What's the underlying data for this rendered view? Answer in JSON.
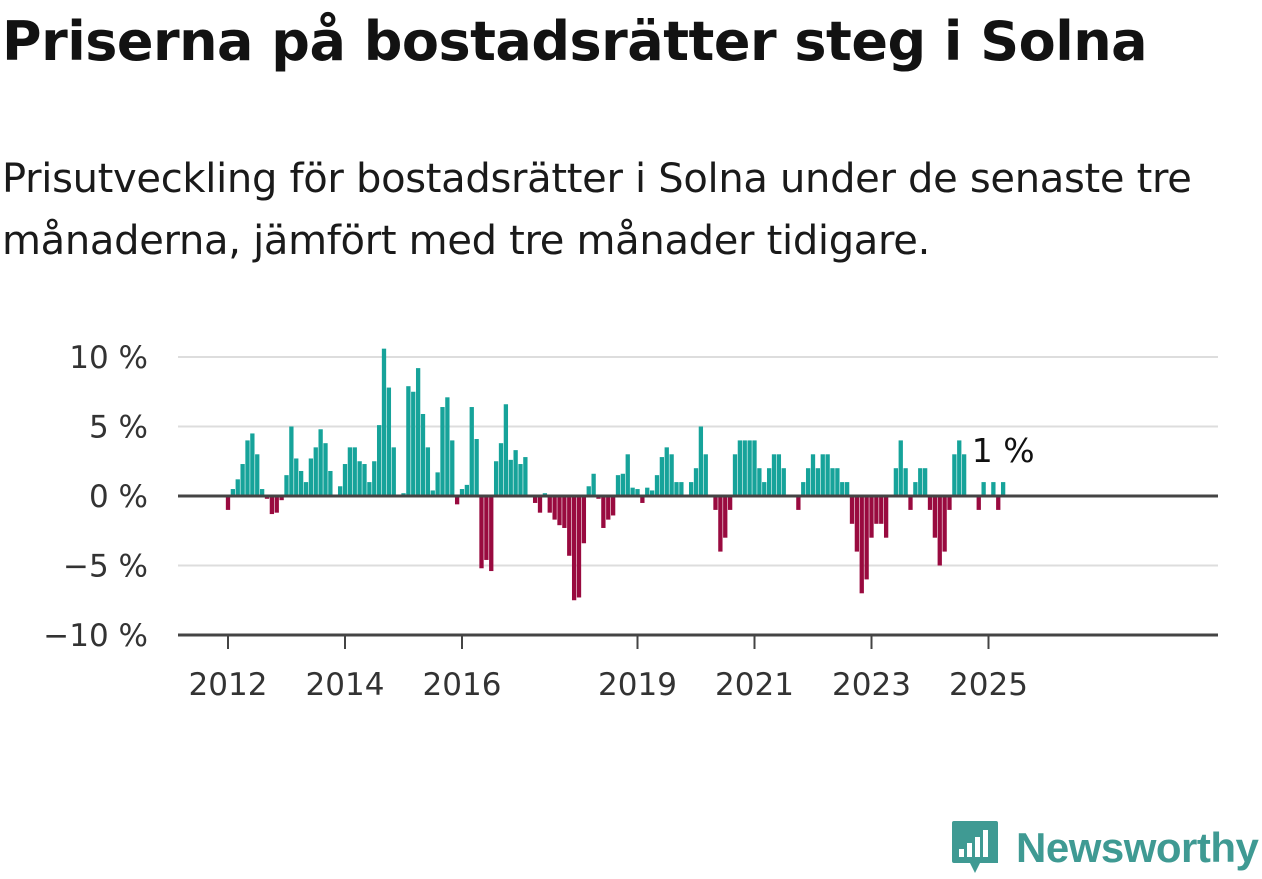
{
  "title": "Priserna på bostadsrätter steg i Solna",
  "subtitle": "Prisutveckling för bostadsrätter i Solna under de senaste tre månaderna, jämfört med tre månader tidigare.",
  "brand": {
    "name": "Newsworthy",
    "icon": "newsworthy-logo-icon"
  },
  "colors": {
    "positive": "#16a39a",
    "negative": "#990a3f",
    "grid": "#dddddd",
    "axis": "#444444"
  },
  "chart_data": {
    "type": "bar",
    "ylabel": "",
    "xlabel": "",
    "ylim": [
      -10,
      10
    ],
    "yticks": [
      {
        "value": 10,
        "label": "10 %"
      },
      {
        "value": 5,
        "label": "5 %"
      },
      {
        "value": 0,
        "label": "0 %"
      },
      {
        "value": -5,
        "label": "−5 %"
      },
      {
        "value": -10,
        "label": "−10 %"
      }
    ],
    "xticks": [
      "2012",
      "2014",
      "2016",
      "2019",
      "2021",
      "2023",
      "2025"
    ],
    "x_start": "2012-01",
    "x_end": "2025-01",
    "last_value_label": "1 %",
    "grid": true,
    "series": [
      {
        "values": [
          -1.0,
          0.5,
          1.2,
          2.3,
          4.0,
          4.5,
          3.0,
          0.5,
          -0.2,
          -1.3,
          -1.2,
          -0.3,
          1.5,
          5.0,
          2.7,
          1.8,
          1.0,
          2.7,
          3.5,
          4.8,
          3.8,
          1.8,
          0,
          0.7,
          2.3,
          3.5,
          3.5,
          2.5,
          2.3,
          1.0,
          2.5,
          5.1,
          10.6,
          7.8,
          3.5,
          0,
          0.2,
          7.9,
          7.5,
          9.2,
          5.9,
          3.5,
          0.4,
          1.7,
          6.4,
          7.1,
          4.0,
          -0.6,
          0.5,
          0.8,
          6.4,
          4.1,
          -5.2,
          -4.6,
          -5.4,
          2.5,
          3.8,
          6.6,
          2.6,
          3.3,
          2.3,
          2.8,
          0,
          -0.5,
          -1.2,
          0.2,
          -1.2,
          -1.7,
          -2.1,
          -2.3,
          -4.3,
          -7.5,
          -7.3,
          -3.4,
          0.7,
          1.6,
          -0.2,
          -2.3,
          -1.7,
          -1.4,
          1.5,
          1.6,
          3.0,
          0.6,
          0.5,
          -0.5,
          0.6,
          0.4,
          1.5,
          2.8,
          3.5,
          3.0,
          1.0,
          1.0,
          0,
          1.0,
          2.0,
          5.0,
          3.0,
          0,
          -1.0,
          -4.0,
          -3.0,
          -1.0,
          3.0,
          4.0,
          4.0,
          4.0,
          4.0,
          2.0,
          1.0,
          2.0,
          3.0,
          3.0,
          2.0,
          0,
          0,
          -1.0,
          1.0,
          2.0,
          3.0,
          2.0,
          3.0,
          3.0,
          2.0,
          2.0,
          1.0,
          1.0,
          -2.0,
          -4.0,
          -7.0,
          -6.0,
          -3.0,
          -2.0,
          -2.0,
          -3.0,
          0,
          2.0,
          4.0,
          2.0,
          -1.0,
          1.0,
          2.0,
          2.0,
          -1.0,
          -3.0,
          -5.0,
          -4.0,
          -1.0,
          3.0,
          4.0,
          3.0,
          0,
          0,
          -1.0,
          1.0,
          0,
          1.0,
          -1.0,
          1.0
        ]
      }
    ]
  }
}
